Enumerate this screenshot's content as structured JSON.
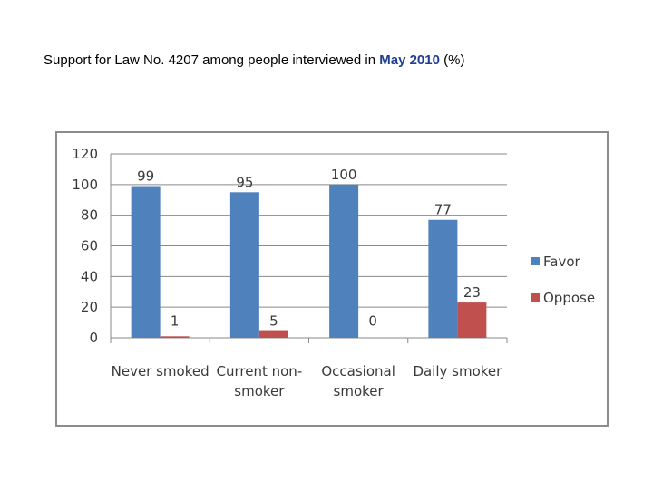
{
  "title": {
    "prefix": "Support for Law No. 4207 among people interviewed in ",
    "highlight": "May 2010",
    "suffix": " (%)"
  },
  "chart_data": {
    "type": "bar",
    "categories": [
      [
        "Never smoked"
      ],
      [
        "Current non-",
        "smoker"
      ],
      [
        "Occasional",
        "smoker"
      ],
      [
        "Daily smoker"
      ]
    ],
    "series": [
      {
        "name": "Favor",
        "values": [
          99,
          95,
          100,
          77
        ],
        "color": "#4f81bd"
      },
      {
        "name": "Oppose",
        "values": [
          1,
          5,
          0,
          23
        ],
        "color": "#c0504d"
      }
    ],
    "ylim": [
      0,
      120
    ],
    "yticks": [
      0,
      20,
      40,
      60,
      80,
      100,
      120
    ],
    "data_labels": true,
    "grid": true,
    "legend_position": "right",
    "xlabel": "",
    "ylabel": ""
  }
}
